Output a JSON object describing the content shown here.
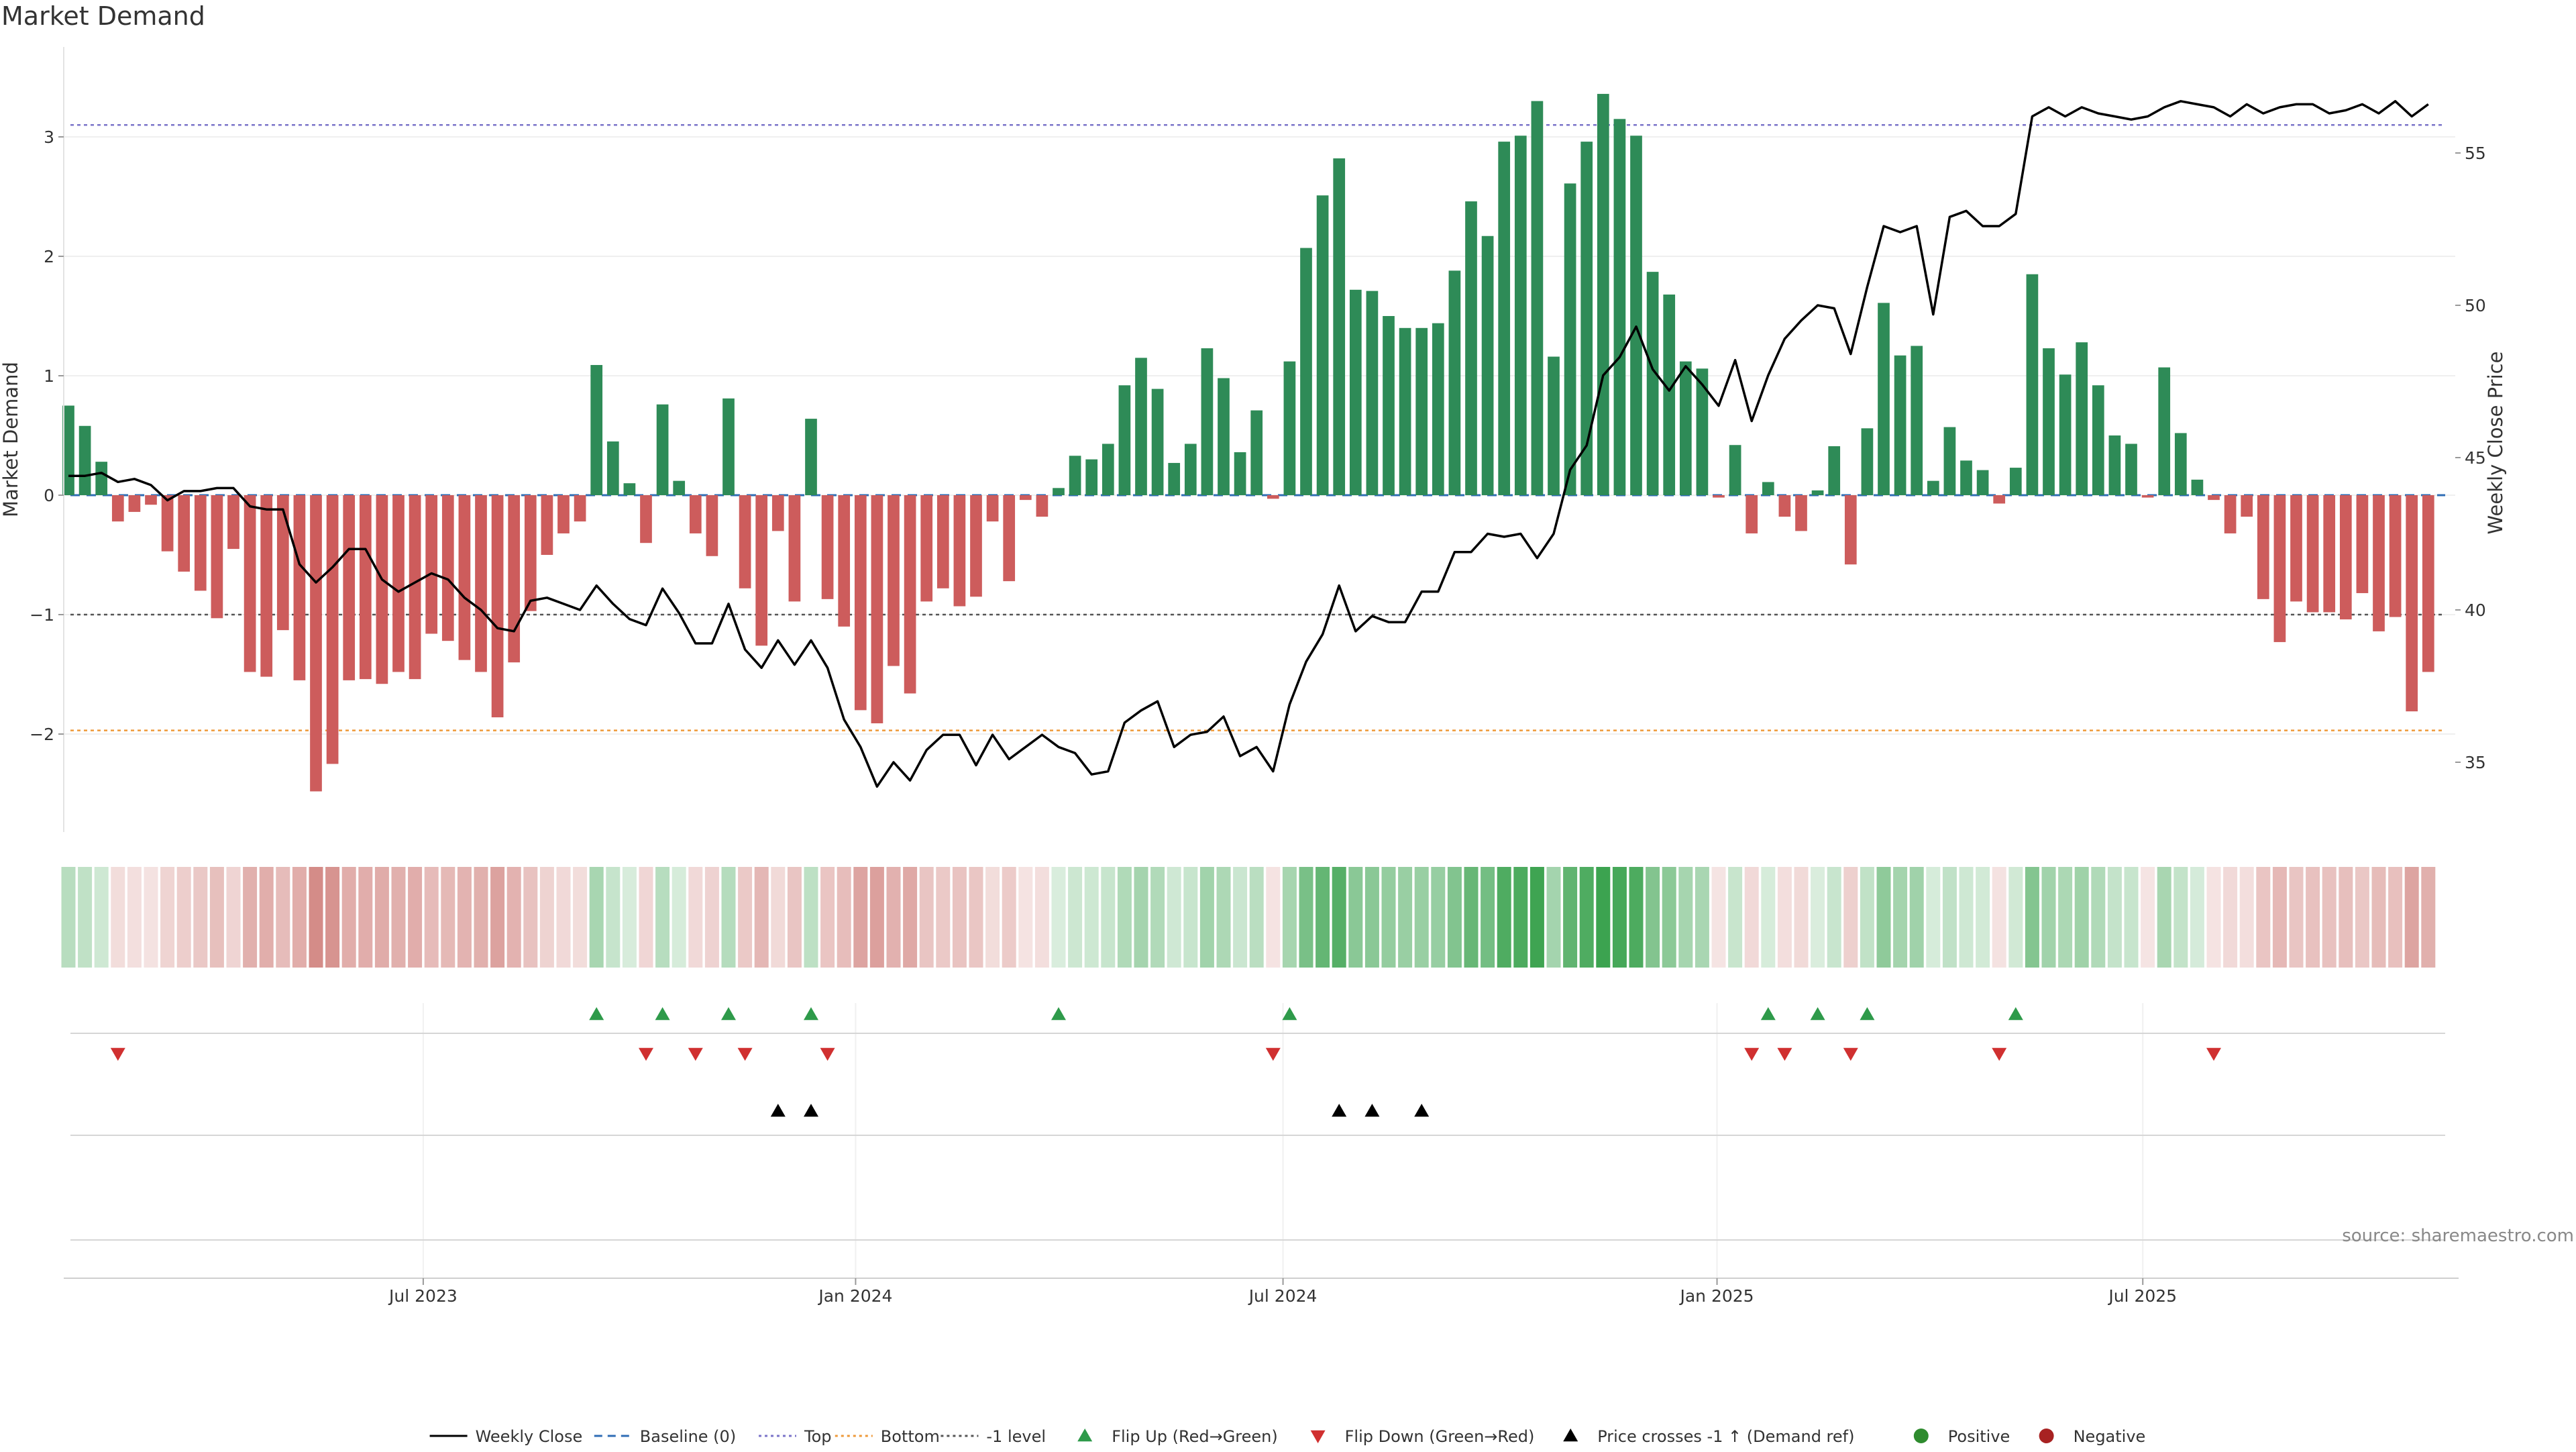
{
  "title": "Market Demand",
  "source": "source: sharemaestro.com",
  "chart_data": {
    "type": "bar",
    "ylabel": "Market Demand",
    "y2label": "Weekly Close Price",
    "ylim": [
      -2.8,
      3.7
    ],
    "y2lim": [
      32.8,
      58.4
    ],
    "yticks": [
      3,
      2,
      1,
      0,
      -1,
      -2
    ],
    "ytick_labels": [
      "3",
      "2",
      "1",
      "0",
      "−1",
      "−2"
    ],
    "y2ticks": [
      55,
      50,
      45,
      40,
      35
    ],
    "x_tick_labels": [
      "Jul 2023",
      "Jan 2024",
      "Jul 2024",
      "Jan 2025",
      "Jul 2025"
    ],
    "x_tick_positions": [
      21.5,
      47.7,
      73.6,
      99.9,
      125.7
    ],
    "reference_lines": [
      {
        "name": "Top",
        "value": 3.1,
        "color": "#7b74c9",
        "style": "dotted"
      },
      {
        "name": "-1 level",
        "value": -1,
        "color": "#555555",
        "style": "dotted"
      },
      {
        "name": "Bottom",
        "value": -1.97,
        "color": "#ee9a3a",
        "style": "dotted"
      }
    ],
    "series": [
      {
        "name": "Market Demand",
        "type": "bar",
        "positive_color": "#2e8b57",
        "negative_color": "#cd5c5c",
        "values": [
          0.75,
          0.58,
          0.28,
          -0.22,
          -0.14,
          -0.08,
          -0.47,
          -0.64,
          -0.8,
          -1.03,
          -0.45,
          -1.48,
          -1.52,
          -1.13,
          -1.55,
          -2.48,
          -2.25,
          -1.55,
          -1.54,
          -1.58,
          -1.48,
          -1.54,
          -1.16,
          -1.22,
          -1.38,
          -1.48,
          -1.86,
          -1.4,
          -0.97,
          -0.5,
          -0.32,
          -0.22,
          1.09,
          0.45,
          0.1,
          -0.4,
          0.76,
          0.12,
          -0.32,
          -0.51,
          0.81,
          -0.78,
          -1.26,
          -0.3,
          -0.89,
          0.64,
          -0.87,
          -1.1,
          -1.8,
          -1.91,
          -1.43,
          -1.66,
          -0.89,
          -0.78,
          -0.93,
          -0.85,
          -0.22,
          -0.72,
          -0.04,
          -0.18,
          0.06,
          0.33,
          0.3,
          0.43,
          0.92,
          1.15,
          0.89,
          0.27,
          0.43,
          1.23,
          0.98,
          0.36,
          0.71,
          -0.03,
          1.12,
          2.07,
          2.51,
          2.82,
          1.72,
          1.71,
          1.5,
          1.4,
          1.4,
          1.44,
          1.88,
          2.46,
          2.17,
          2.96,
          3.01,
          3.3,
          1.16,
          2.61,
          2.96,
          3.36,
          3.15,
          3.01,
          1.87,
          1.68,
          1.12,
          1.06,
          -0.02,
          0.42,
          -0.32,
          0.11,
          -0.18,
          -0.3,
          0.04,
          0.41,
          -0.58,
          0.56,
          1.61,
          1.17,
          1.25,
          0.12,
          0.57,
          0.29,
          0.21,
          -0.07,
          0.23,
          1.85,
          1.23,
          1.01,
          1.28,
          0.92,
          0.5,
          0.43,
          -0.02,
          1.07,
          0.52,
          0.13,
          -0.04,
          -0.32,
          -0.18,
          -0.87,
          -1.23,
          -0.89,
          -0.98,
          -0.98,
          -1.04,
          -0.82,
          -1.14,
          -1.02,
          -1.81,
          -1.48
        ]
      },
      {
        "name": "Weekly Close",
        "type": "line",
        "color": "#000000",
        "values": [
          44.4,
          44.4,
          44.5,
          44.2,
          44.3,
          44.1,
          43.6,
          43.9,
          43.9,
          44.0,
          44.0,
          43.4,
          43.3,
          43.3,
          41.5,
          40.9,
          41.4,
          42.0,
          42.0,
          41.0,
          40.6,
          40.9,
          41.2,
          41.0,
          40.4,
          40.0,
          39.4,
          39.3,
          40.3,
          40.4,
          40.2,
          40.0,
          40.8,
          40.2,
          39.7,
          39.5,
          40.7,
          39.9,
          38.9,
          38.9,
          40.2,
          38.7,
          38.1,
          39.0,
          38.2,
          39.0,
          38.1,
          36.4,
          35.5,
          34.2,
          35.0,
          34.4,
          35.4,
          35.9,
          35.9,
          34.9,
          35.9,
          35.1,
          35.5,
          35.9,
          35.5,
          35.3,
          34.6,
          34.7,
          36.3,
          36.7,
          37.0,
          35.5,
          35.9,
          36.0,
          36.5,
          35.2,
          35.5,
          34.7,
          36.9,
          38.3,
          39.2,
          40.8,
          39.3,
          39.8,
          39.6,
          39.6,
          40.6,
          40.6,
          41.9,
          41.9,
          42.5,
          42.4,
          42.5,
          41.7,
          42.5,
          44.6,
          45.4,
          47.7,
          48.3,
          49.3,
          47.9,
          47.2,
          48.0,
          47.4,
          46.7,
          48.2,
          46.2,
          47.7,
          48.9,
          49.5,
          50.0,
          49.9,
          48.4,
          50.6,
          52.6,
          52.4,
          52.6,
          49.7,
          52.9,
          53.1,
          52.6,
          52.6,
          53.0,
          56.2,
          56.5,
          56.2,
          56.5,
          56.3,
          56.2,
          56.1,
          56.2,
          56.5,
          56.7,
          56.6,
          56.5,
          56.2,
          56.6,
          56.3,
          56.5,
          56.6,
          56.6,
          56.3,
          56.4,
          56.6,
          56.3,
          56.7,
          56.2,
          56.6
        ]
      }
    ],
    "baseline": {
      "name": "Baseline (0)",
      "value": 0,
      "color": "#2f6db5",
      "style": "dashed"
    },
    "flip_up_weeks": [
      32,
      36,
      40,
      45,
      60,
      74,
      103,
      106,
      109,
      118
    ],
    "flip_down_weeks": [
      3,
      35,
      38,
      41,
      46,
      73,
      102,
      104,
      108,
      117,
      130
    ],
    "price_cross_weeks": [
      43,
      45,
      77,
      79,
      82
    ],
    "legend": {
      "position": "bottom",
      "items": [
        {
          "label": "Weekly Close",
          "kind": "line",
          "color": "#000000"
        },
        {
          "label": "Baseline (0)",
          "kind": "dashed",
          "color": "#2f6db5"
        },
        {
          "label": "Top",
          "kind": "dotted",
          "color": "#7b74c9"
        },
        {
          "label": "Bottom",
          "kind": "dotted",
          "color": "#ee9a3a"
        },
        {
          "label": "-1 level",
          "kind": "dotted",
          "color": "#555555"
        },
        {
          "label": "Flip Up (Red→Green)",
          "kind": "triangle-up",
          "color": "#2e9a4a"
        },
        {
          "label": "Flip Down (Green→Red)",
          "kind": "triangle-down",
          "color": "#d03030"
        },
        {
          "label": "Price crosses -1 ↑ (Demand ref)",
          "kind": "triangle-up",
          "color": "#000000"
        },
        {
          "label": "Positive",
          "kind": "circle",
          "color": "#2e8b2e"
        },
        {
          "label": "Negative",
          "kind": "circle",
          "color": "#a82222"
        }
      ]
    }
  }
}
